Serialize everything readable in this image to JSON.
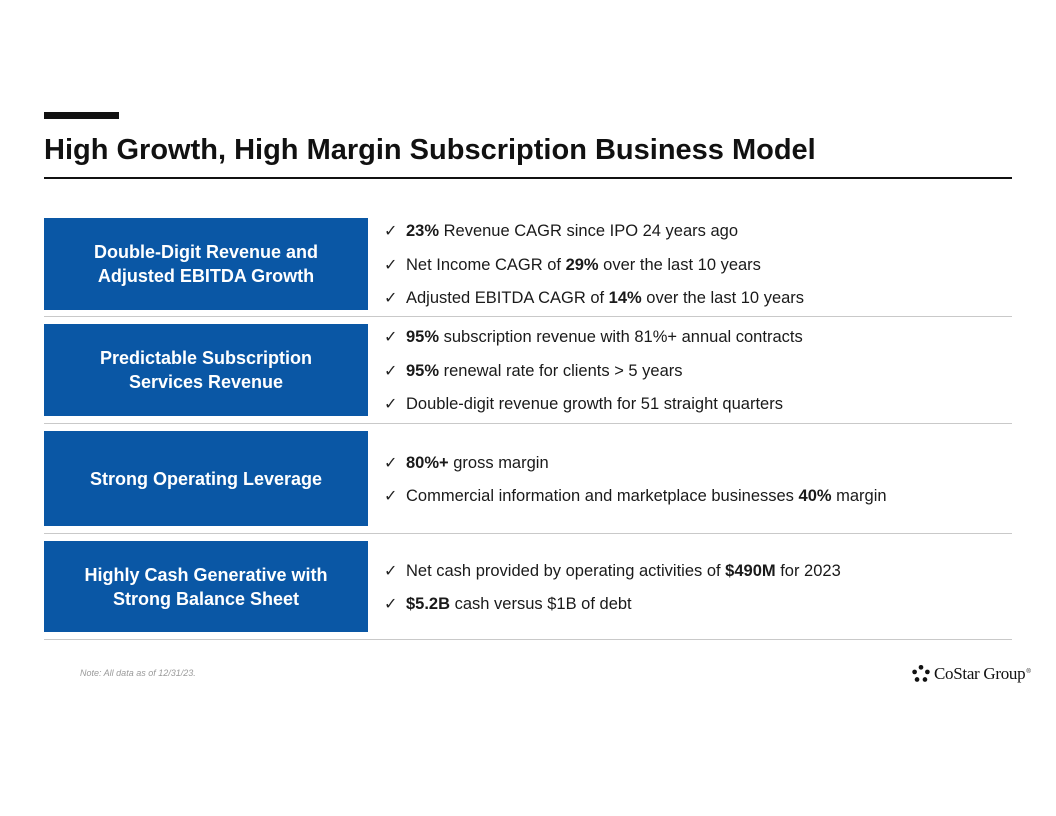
{
  "header": {
    "title": "High Growth, High Margin Subscription Business Model"
  },
  "sections": [
    {
      "label_line1": "Double-Digit Revenue and",
      "label_line2": "Adjusted EBITDA Growth",
      "bullets": [
        {
          "bold1": "23%",
          "text1": " Revenue CAGR since IPO 24 years ago",
          "bold2": "",
          "text2": ""
        },
        {
          "bold1": "",
          "text1": "Net Income CAGR of ",
          "bold2": "29%",
          "text2": " over the last 10 years"
        },
        {
          "bold1": "",
          "text1": "Adjusted EBITDA CAGR of ",
          "bold2": "14%",
          "text2": " over the last 10 years"
        }
      ]
    },
    {
      "label_line1": "Predictable Subscription",
      "label_line2": "Services Revenue",
      "bullets": [
        {
          "bold1": "95%",
          "text1": " subscription revenue with 81%+ annual contracts",
          "bold2": "",
          "text2": ""
        },
        {
          "bold1": "95%",
          "text1": " renewal rate for clients > 5 years",
          "bold2": "",
          "text2": ""
        },
        {
          "bold1": "",
          "text1": "Double-digit revenue growth for 51 straight quarters",
          "bold2": "",
          "text2": ""
        }
      ]
    },
    {
      "label_line1": "Strong Operating Leverage",
      "label_line2": "",
      "bullets": [
        {
          "bold1": "80%+",
          "text1": " gross margin",
          "bold2": "",
          "text2": ""
        },
        {
          "bold1": "",
          "text1": "Commercial information and marketplace businesses ",
          "bold2": "40%",
          "text2": " margin"
        }
      ]
    },
    {
      "label_line1": "Highly Cash Generative with",
      "label_line2": "Strong Balance Sheet",
      "bullets": [
        {
          "bold1": "",
          "text1": "Net cash provided by operating activities of ",
          "bold2": "$490M",
          "text2": " for 2023"
        },
        {
          "bold1": "$5.2B",
          "text1": " cash versus $1B of debt",
          "bold2": "",
          "text2": ""
        }
      ]
    }
  ],
  "footer": {
    "note": "Note: All data as of 12/31/23.",
    "logo_text": "CoStar Group",
    "logo_tm": "®"
  },
  "colors": {
    "label_blue": "#0a57a5",
    "title_black": "#111111",
    "rule_gray": "#c9c9c9"
  },
  "icons": {
    "bullet": "checkmark-icon",
    "logo": "costar-star-icon"
  }
}
